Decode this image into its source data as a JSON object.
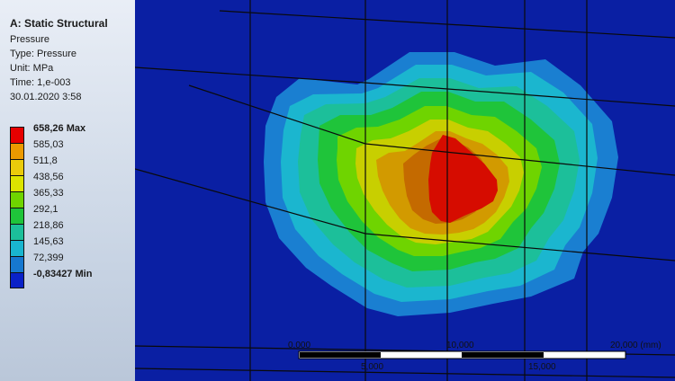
{
  "legend": {
    "title": "A: Static Structural",
    "lines": [
      "Pressure",
      "Type: Pressure",
      "Unit: MPa",
      "Time: 1,e-003",
      "30.01.2020 3:58"
    ],
    "entries": [
      {
        "label": "658,26 Max",
        "color": "#e60000"
      },
      {
        "label": "585,03",
        "color": "#ec9a00"
      },
      {
        "label": "511,8",
        "color": "#eacb0b"
      },
      {
        "label": "438,56",
        "color": "#dce400"
      },
      {
        "label": "365,33",
        "color": "#6fd400"
      },
      {
        "label": "292,1",
        "color": "#1fc43a"
      },
      {
        "label": "218,86",
        "color": "#1cbf9a"
      },
      {
        "label": "145,63",
        "color": "#19b5cf"
      },
      {
        "label": "72,399",
        "color": "#1678d0"
      },
      {
        "label": "-0,83427 Min",
        "color": "#0a22c8"
      }
    ]
  },
  "scale_bar": {
    "labels_top": [
      "0,000",
      "10,000",
      "20,000 (mm)"
    ],
    "labels_bottom": [
      "5,000",
      "15,000"
    ]
  },
  "colors": {
    "background": "#0a1fa3",
    "band_1": "#1a7fd1",
    "band_2": "#1bb6cf",
    "band_3": "#1cbf9a",
    "band_4": "#1fc43a",
    "band_5": "#6fd400",
    "band_6": "#c8cf00",
    "band_7": "#d29a00",
    "band_8": "#c46a00",
    "band_9": "#d60c00"
  }
}
